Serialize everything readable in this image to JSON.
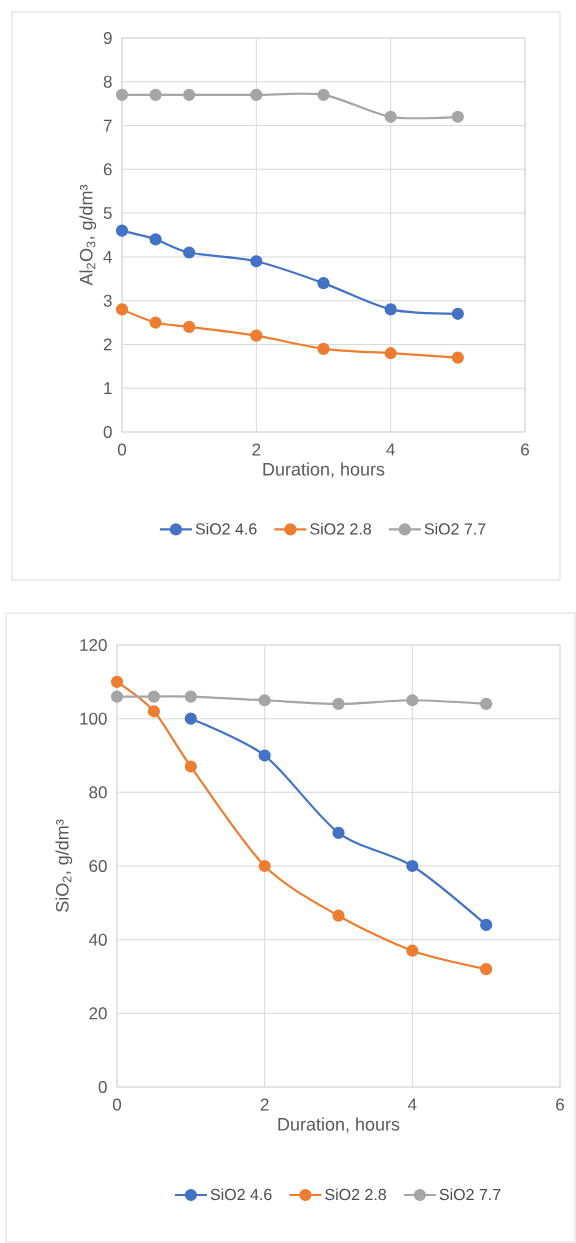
{
  "chart_data": [
    {
      "type": "line",
      "xlabel": "Duration, hours",
      "ylabel": "Al$_{2}$O$_{3}$, g/dm³",
      "xlim": [
        0,
        6
      ],
      "xticks": [
        0,
        2,
        4,
        6
      ],
      "ylim": [
        0,
        9
      ],
      "yticks": [
        0,
        1,
        2,
        3,
        4,
        5,
        6,
        7,
        8,
        9
      ],
      "grid": true,
      "legend": "bottom",
      "marker": "circle",
      "x": [
        0,
        0.5,
        1,
        2,
        3,
        4,
        5
      ],
      "series": [
        {
          "name": "SiO2 4.6",
          "color": "#4472c4",
          "values": [
            4.6,
            4.4,
            4.1,
            3.9,
            3.4,
            2.8,
            2.7
          ]
        },
        {
          "name": "SiO2 2.8",
          "color": "#ed7d31",
          "values": [
            2.8,
            2.5,
            2.4,
            2.2,
            1.9,
            1.8,
            1.7
          ]
        },
        {
          "name": "SiO2 7.7",
          "color": "#a5a5a5",
          "values": [
            7.7,
            7.7,
            7.7,
            7.7,
            7.7,
            7.2,
            7.2
          ]
        }
      ]
    },
    {
      "type": "line",
      "xlabel": "Duration, hours",
      "ylabel": "SiO$_{2}$, g/dm³",
      "xlim": [
        0,
        6
      ],
      "xticks": [
        0,
        2,
        4,
        6
      ],
      "ylim": [
        0,
        120
      ],
      "yticks": [
        0,
        20,
        40,
        60,
        80,
        100,
        120
      ],
      "grid": true,
      "legend": "bottom",
      "marker": "circle",
      "x": [
        0,
        0.5,
        1,
        2,
        3,
        4,
        5
      ],
      "series": [
        {
          "name": "SiO2 4.6",
          "color": "#4472c4",
          "values": [
            null,
            null,
            100,
            90,
            69,
            60,
            44
          ]
        },
        {
          "name": "SiO2 2.8",
          "color": "#ed7d31",
          "values": [
            110,
            102,
            87,
            60,
            46.5,
            37,
            32
          ]
        },
        {
          "name": "SiO2 7.7",
          "color": "#a5a5a5",
          "values": [
            106,
            106,
            106,
            105,
            104,
            105,
            104
          ]
        }
      ]
    }
  ]
}
